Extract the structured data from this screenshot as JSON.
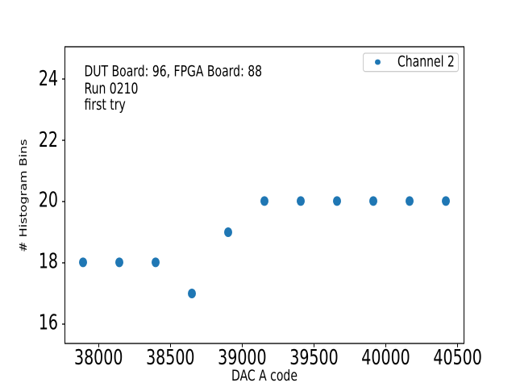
{
  "window": {
    "background": "#ffffff"
  },
  "chart_data": {
    "type": "scatter",
    "title": "",
    "xlabel": "DAC A code",
    "ylabel": "# Histogram Bins",
    "xlim": [
      37763,
      40547
    ],
    "ylim": [
      15.33,
      25.07
    ],
    "xticks": [
      38000,
      38500,
      39000,
      39500,
      40000,
      40500
    ],
    "yticks": [
      16,
      18,
      20,
      22,
      24
    ],
    "grid": false,
    "legend": {
      "label": "Channel 2",
      "position": "upper-right"
    },
    "series": [
      {
        "name": "Channel 2",
        "marker": "circle",
        "color": "#1f77b4",
        "points": [
          {
            "x": 37890,
            "y": 18
          },
          {
            "x": 38145,
            "y": 18
          },
          {
            "x": 38395,
            "y": 18
          },
          {
            "x": 38650,
            "y": 17
          },
          {
            "x": 38900,
            "y": 19
          },
          {
            "x": 39155,
            "y": 20
          },
          {
            "x": 39405,
            "y": 20
          },
          {
            "x": 39660,
            "y": 20
          },
          {
            "x": 39910,
            "y": 20
          },
          {
            "x": 40165,
            "y": 20
          },
          {
            "x": 40420,
            "y": 20
          }
        ]
      }
    ],
    "annotation_lines": [
      "DUT Board: 96, FPGA Board: 88",
      "Run 0210",
      "first try"
    ]
  },
  "colors": {
    "marker": "#1f77b4",
    "text": "#000000",
    "spine": "#000000",
    "legend_border": "#cccccc"
  }
}
